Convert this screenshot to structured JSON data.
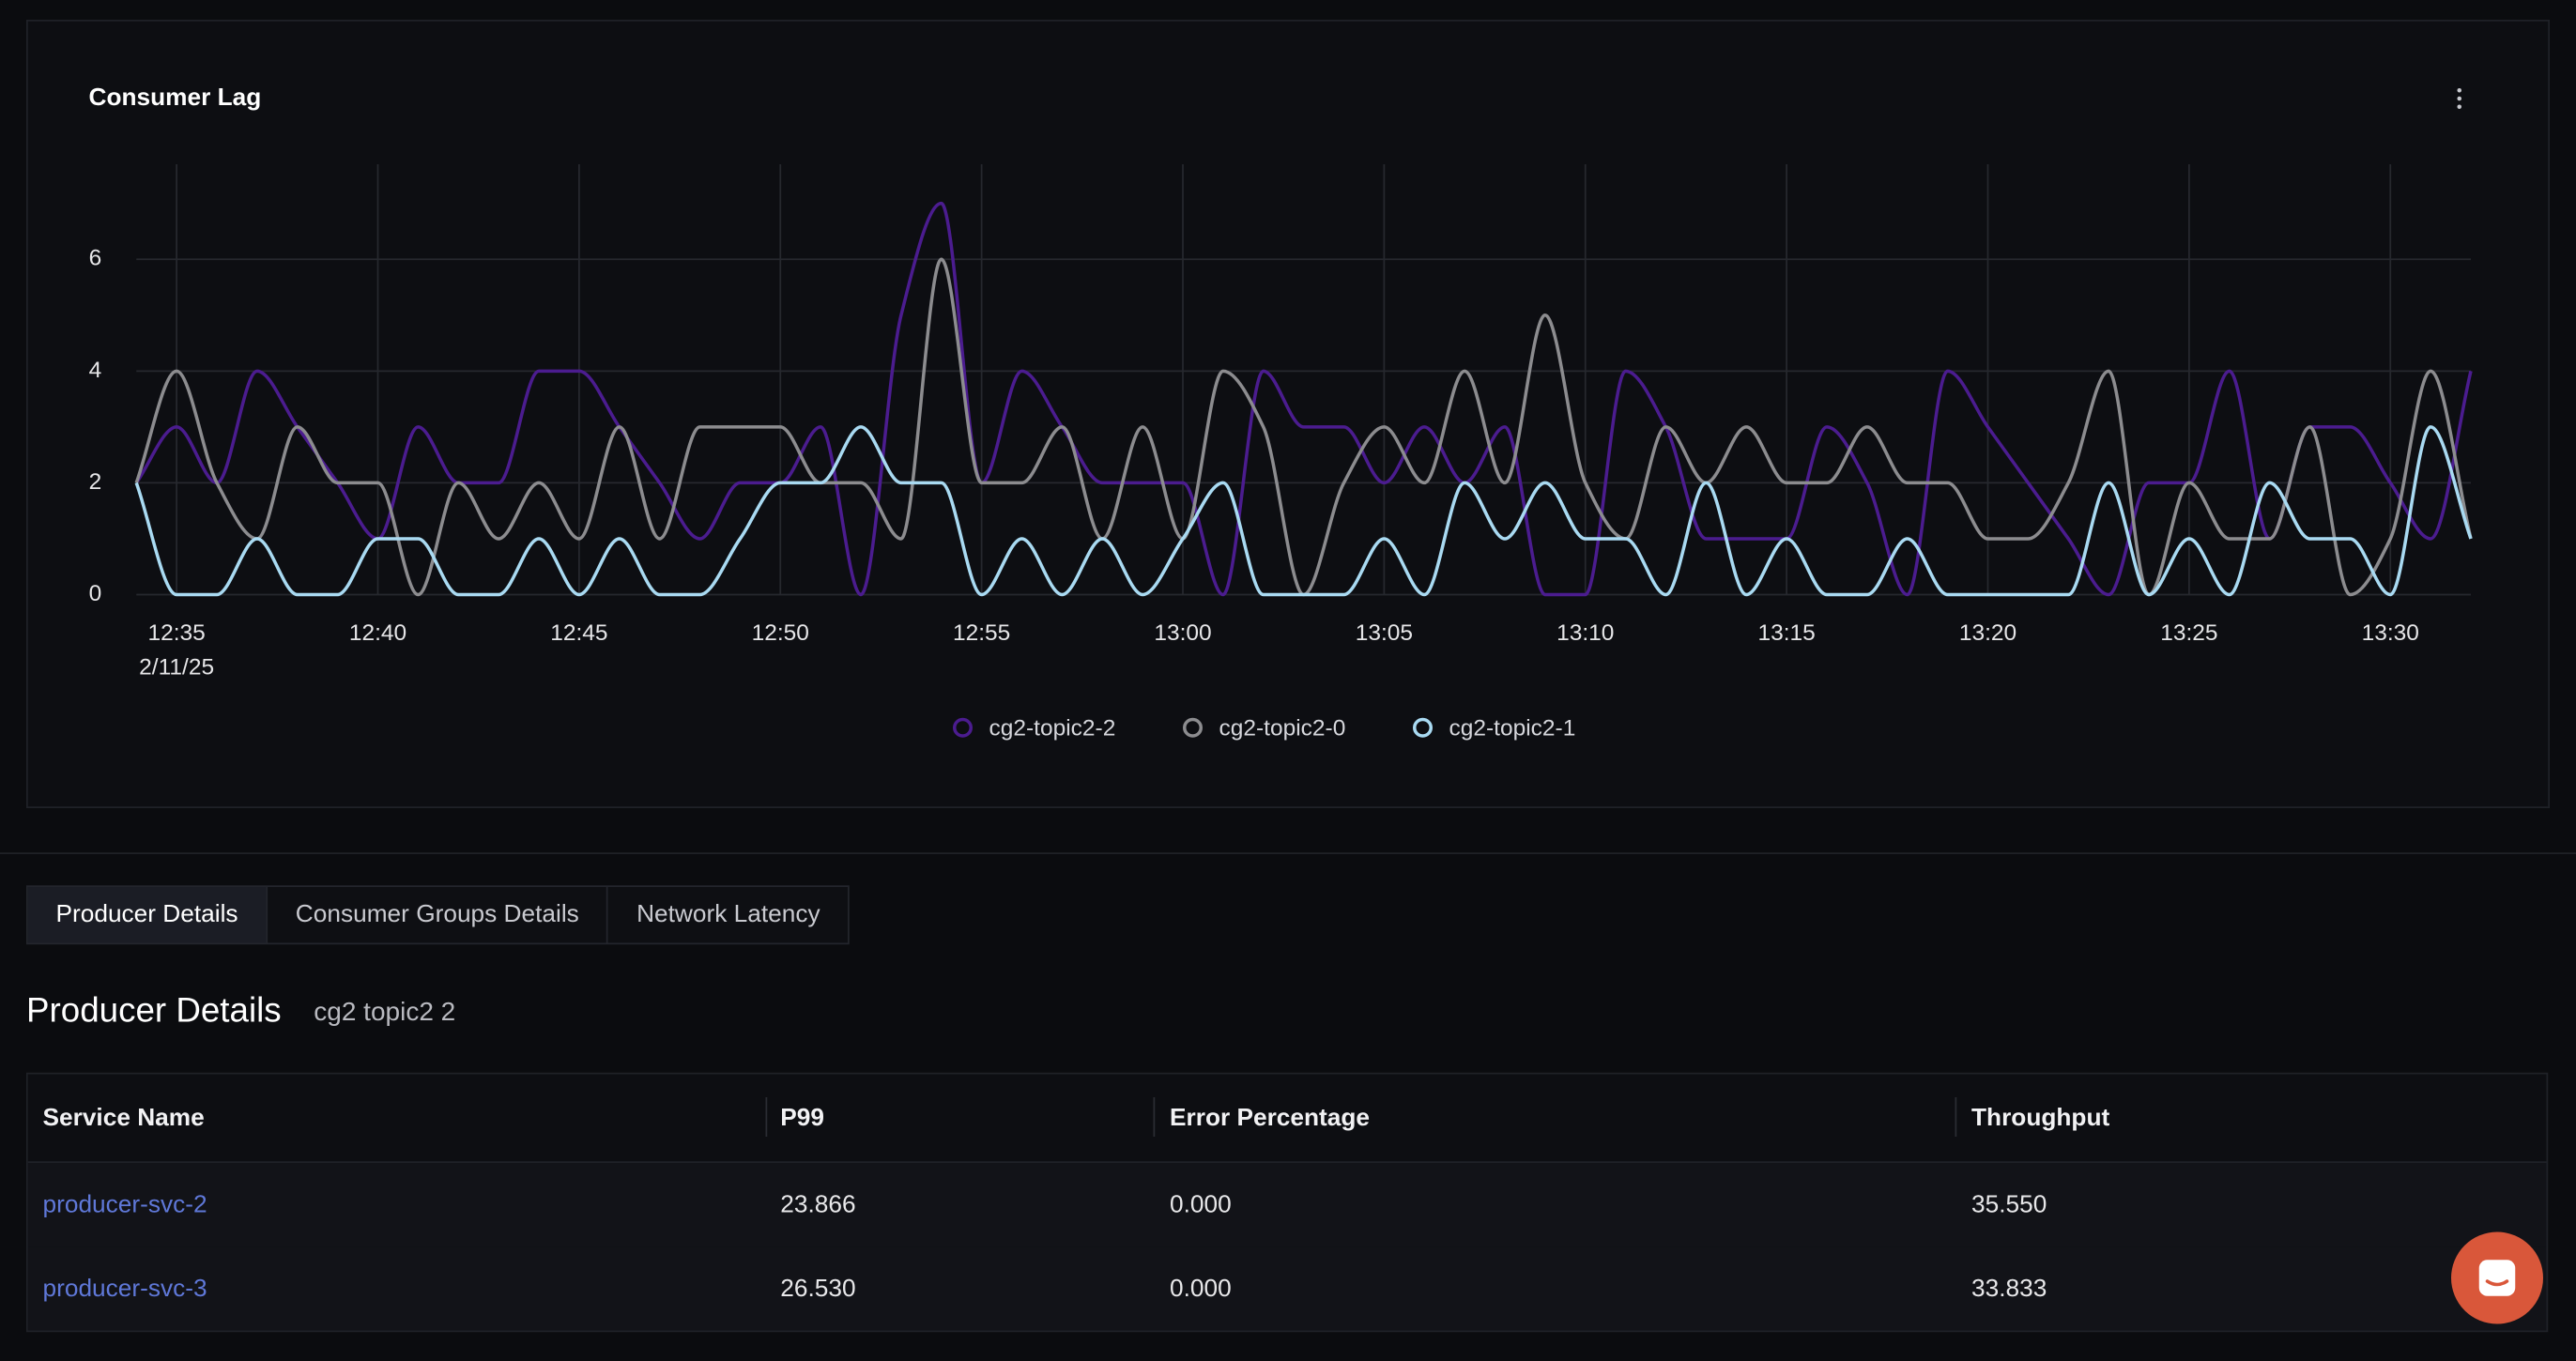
{
  "chart_data": {
    "type": "line",
    "title": "Consumer Lag",
    "x": [
      "12:34",
      "12:35",
      "12:36",
      "12:37",
      "12:38",
      "12:39",
      "12:40",
      "12:41",
      "12:42",
      "12:43",
      "12:44",
      "12:45",
      "12:46",
      "12:47",
      "12:48",
      "12:49",
      "12:50",
      "12:51",
      "12:52",
      "12:53",
      "12:54",
      "12:55",
      "12:56",
      "12:57",
      "12:58",
      "12:59",
      "13:00",
      "13:01",
      "13:02",
      "13:03",
      "13:04",
      "13:05",
      "13:06",
      "13:07",
      "13:08",
      "13:09",
      "13:10",
      "13:11",
      "13:12",
      "13:13",
      "13:14",
      "13:15",
      "13:16",
      "13:17",
      "13:18",
      "13:19",
      "13:20",
      "13:21",
      "13:22",
      "13:23",
      "13:24",
      "13:25",
      "13:26",
      "13:27",
      "13:28",
      "13:29",
      "13:30",
      "13:31",
      "13:32"
    ],
    "xlim": [
      "12:34",
      "13:32"
    ],
    "xticks": [
      "12:35",
      "12:40",
      "12:45",
      "12:50",
      "12:55",
      "13:00",
      "13:05",
      "13:10",
      "13:15",
      "13:20",
      "13:25",
      "13:30"
    ],
    "xtick_date": "2/11/25",
    "ylim": [
      0,
      7.7
    ],
    "yticks": [
      0,
      2,
      4,
      6
    ],
    "grid": true,
    "legend": "bottom",
    "series": [
      {
        "name": "cg2-topic2-2",
        "color": "#4b1c8f",
        "values": [
          2,
          3,
          2,
          4,
          3,
          2,
          1,
          3,
          2,
          2,
          4,
          4,
          3,
          2,
          1,
          2,
          2,
          3,
          0,
          5,
          7,
          2,
          4,
          3,
          2,
          2,
          2,
          0,
          4,
          3,
          3,
          2,
          3,
          2,
          3,
          0,
          0,
          4,
          3,
          1,
          1,
          1,
          3,
          2,
          0,
          4,
          3,
          2,
          1,
          0,
          2,
          2,
          4,
          1,
          3,
          3,
          2,
          1,
          4
        ]
      },
      {
        "name": "cg2-topic2-0",
        "color": "#8c8c8f",
        "values": [
          2,
          4,
          2,
          1,
          3,
          2,
          2,
          0,
          2,
          1,
          2,
          1,
          3,
          1,
          3,
          3,
          3,
          2,
          2,
          1,
          6,
          2,
          2,
          3,
          1,
          3,
          1,
          4,
          3,
          0,
          2,
          3,
          2,
          4,
          2,
          5,
          2,
          1,
          3,
          2,
          3,
          2,
          2,
          3,
          2,
          2,
          1,
          1,
          2,
          4,
          0,
          2,
          1,
          1,
          3,
          0,
          1,
          4,
          1
        ]
      },
      {
        "name": "cg2-topic2-1",
        "color": "#a9daf2",
        "values": [
          2,
          0,
          0,
          1,
          0,
          0,
          1,
          1,
          0,
          0,
          1,
          0,
          1,
          0,
          0,
          1,
          2,
          2,
          3,
          2,
          2,
          0,
          1,
          0,
          1,
          0,
          1,
          2,
          0,
          0,
          0,
          1,
          0,
          2,
          1,
          2,
          1,
          1,
          0,
          2,
          0,
          1,
          0,
          0,
          1,
          0,
          0,
          0,
          0,
          2,
          0,
          1,
          0,
          2,
          1,
          1,
          0,
          3,
          1
        ]
      }
    ]
  },
  "tabs": [
    "Producer Details",
    "Consumer Groups Details",
    "Network Latency"
  ],
  "section": {
    "title": "Producer Details",
    "subtitle": "cg2 topic2 2"
  },
  "table": {
    "columns": [
      "Service Name",
      "P99",
      "Error Percentage",
      "Throughput"
    ],
    "rows": [
      [
        "producer-svc-2",
        "23.866",
        "0.000",
        "35.550"
      ],
      [
        "producer-svc-3",
        "26.530",
        "0.000",
        "33.833"
      ]
    ]
  }
}
